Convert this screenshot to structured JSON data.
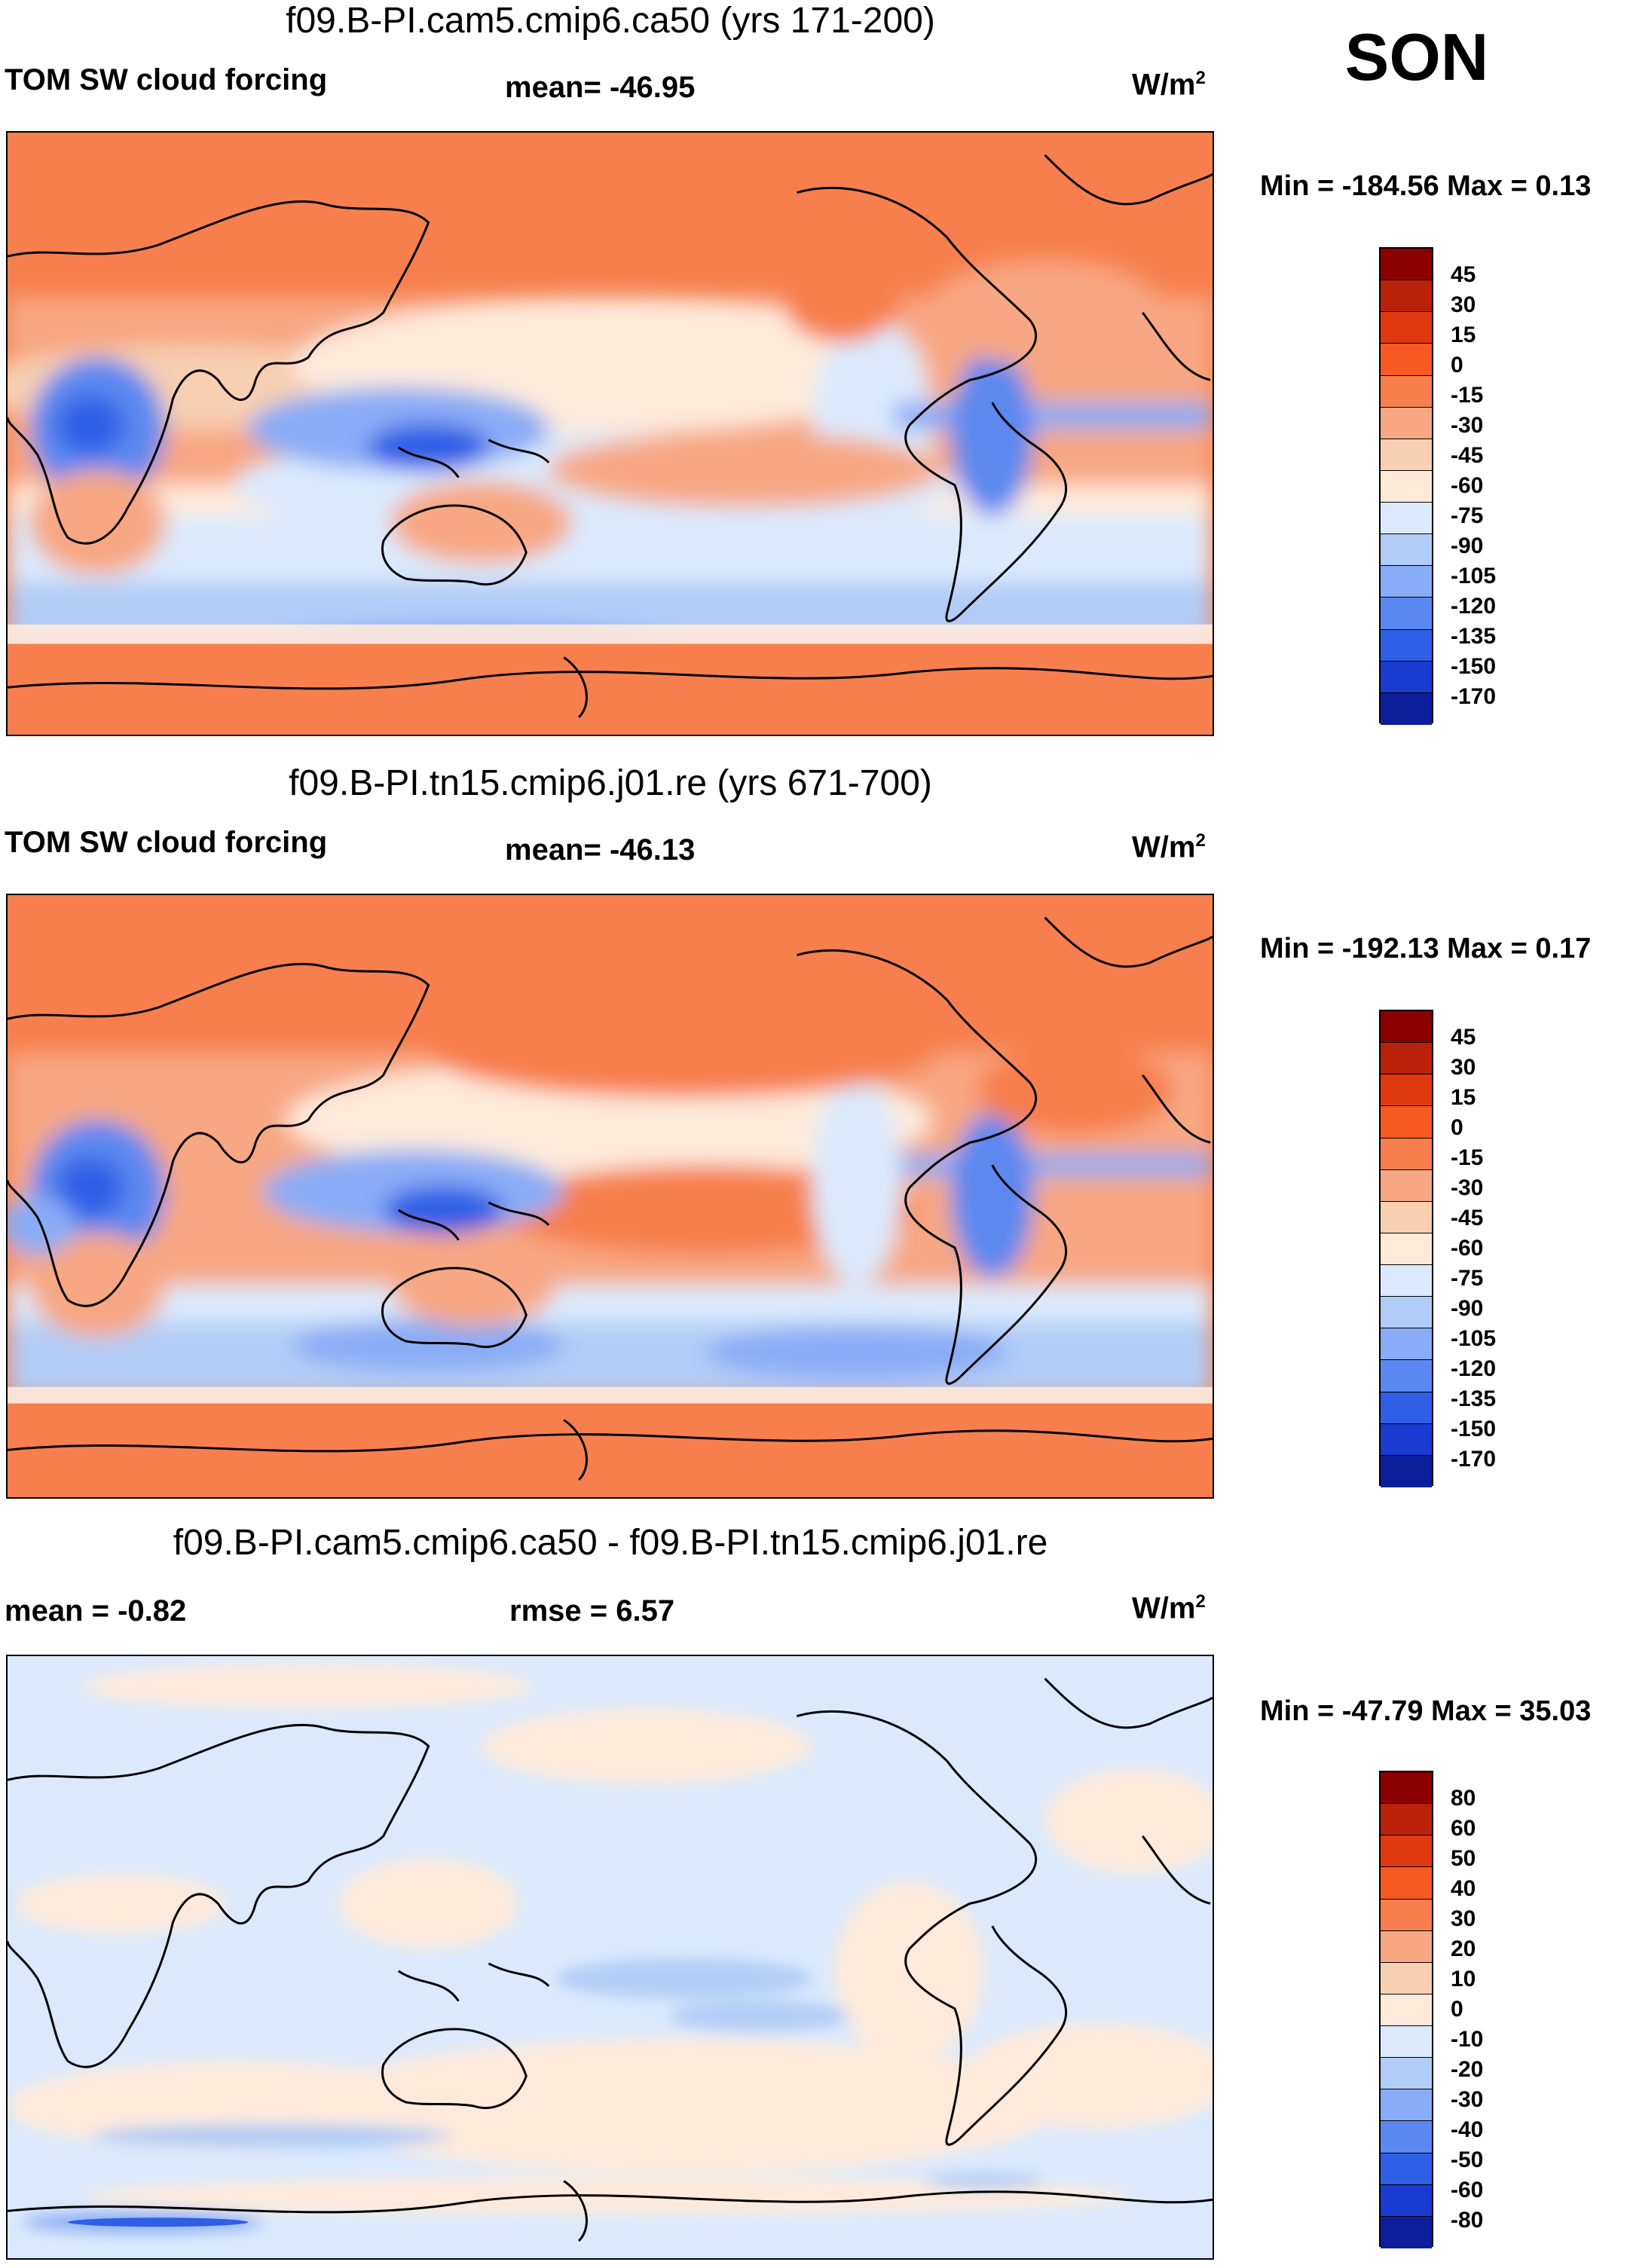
{
  "season": "SON",
  "panels": [
    {
      "title": "f09.B-PI.cam5.cmip6.ca50 (yrs 171-200)",
      "left_label": "TOM SW cloud forcing",
      "center_label": "mean= -46.95",
      "units_base": "W/m",
      "units_exp": "2",
      "minmax": "Min = -184.56 Max =   0.13",
      "colorbar_labels": [
        "45",
        "30",
        "15",
        "0",
        "-15",
        "-30",
        "-45",
        "-60",
        "-75",
        "-90",
        "-105",
        "-120",
        "-135",
        "-150",
        "-170"
      ]
    },
    {
      "title": "f09.B-PI.tn15.cmip6.j01.re (yrs 671-700)",
      "left_label": "TOM SW cloud forcing",
      "center_label": "mean= -46.13",
      "units_base": "W/m",
      "units_exp": "2",
      "minmax": "Min = -192.13 Max =   0.17",
      "colorbar_labels": [
        "45",
        "30",
        "15",
        "0",
        "-15",
        "-30",
        "-45",
        "-60",
        "-75",
        "-90",
        "-105",
        "-120",
        "-135",
        "-150",
        "-170"
      ]
    },
    {
      "title": "f09.B-PI.cam5.cmip6.ca50 - f09.B-PI.tn15.cmip6.j01.re",
      "left_label": "mean =  -0.82",
      "center_label": "rmse =   6.57",
      "units_base": "W/m",
      "units_exp": "2",
      "minmax": "Min = -47.79 Max =  35.03",
      "colorbar_labels": [
        "80",
        "60",
        "50",
        "40",
        "30",
        "20",
        "10",
        "0",
        "-10",
        "-20",
        "-30",
        "-40",
        "-50",
        "-60",
        "-80"
      ]
    }
  ],
  "chart_data": [
    {
      "type": "heatmap",
      "title": "f09.B-PI.cam5.cmip6.ca50 (yrs 171-200)",
      "variable": "TOM SW cloud forcing",
      "mean": -46.95,
      "min": -184.56,
      "max": 0.13,
      "units": "W/m2",
      "levels": [
        45,
        30,
        15,
        0,
        -15,
        -30,
        -45,
        -60,
        -75,
        -90,
        -105,
        -120,
        -135,
        -150,
        -170
      ]
    },
    {
      "type": "heatmap",
      "title": "f09.B-PI.tn15.cmip6.j01.re (yrs 671-700)",
      "variable": "TOM SW cloud forcing",
      "mean": -46.13,
      "min": -192.13,
      "max": 0.17,
      "units": "W/m2",
      "levels": [
        45,
        30,
        15,
        0,
        -15,
        -30,
        -45,
        -60,
        -75,
        -90,
        -105,
        -120,
        -135,
        -150,
        -170
      ]
    },
    {
      "type": "heatmap",
      "title": "f09.B-PI.cam5.cmip6.ca50 - f09.B-PI.tn15.cmip6.j01.re",
      "mean": -0.82,
      "rmse": 6.57,
      "min": -47.79,
      "max": 35.03,
      "units": "W/m2",
      "levels": [
        80,
        60,
        50,
        40,
        30,
        20,
        10,
        0,
        -10,
        -20,
        -30,
        -40,
        -50,
        -60,
        -80
      ]
    }
  ],
  "colors": {
    "palette": [
      "#8b0000",
      "#b8220a",
      "#e0390f",
      "#f75a20",
      "#f77f4e",
      "#f7a783",
      "#f8cfb1",
      "#fdeadb",
      "#dbe9fb",
      "#b1ccf7",
      "#88acf5",
      "#5b88f0",
      "#2e5fe6",
      "#1a3bcf",
      "#0d1e9b"
    ],
    "diff_palette": [
      "#8b0000",
      "#b8220a",
      "#e0390f",
      "#f75a20",
      "#f77f4e",
      "#f7a783",
      "#f8cfb1",
      "#fdeadb",
      "#dbe9fb",
      "#b1ccf7",
      "#88acf5",
      "#5b88f0",
      "#2e5fe6",
      "#1a3bcf",
      "#0d1e9b"
    ]
  }
}
